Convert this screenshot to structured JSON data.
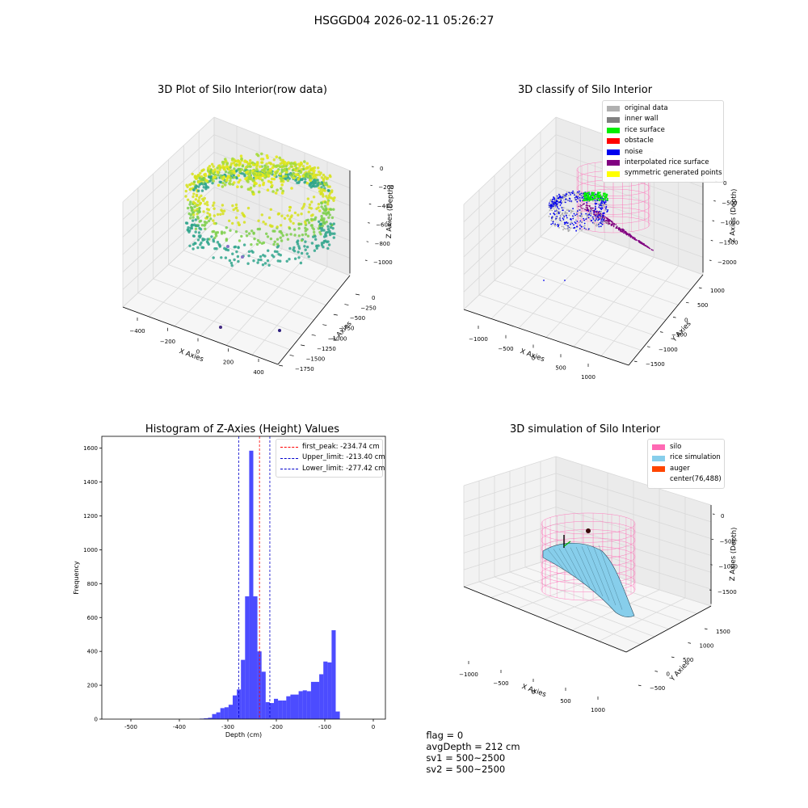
{
  "suptitle": "HSGGD04 2026-02-11 05:26:27",
  "panels": {
    "raw": {
      "title": "3D Plot of Silo Interior(row data)",
      "x_label": "X Axies",
      "y_label": "Y Axies",
      "z_label": "Z Axies (Depth)",
      "x_ticks": [
        "−400",
        "−200",
        "0",
        "200",
        "400"
      ],
      "y_ticks": [
        "0",
        "−250",
        "−500",
        "−750",
        "−1000",
        "−1250",
        "−1500",
        "−1750"
      ],
      "z_ticks": [
        "0",
        "−200",
        "−400",
        "−600",
        "−800",
        "−1000"
      ]
    },
    "classify": {
      "title": "3D classify of Silo Interior",
      "x_label": "X Axies",
      "y_label": "Y Axies",
      "z_label": "Z Axies (Depth)",
      "x_ticks": [
        "−1000",
        "−500",
        "0",
        "500",
        "1000"
      ],
      "y_ticks": [
        "1000",
        "500",
        "0",
        "−500",
        "−1000",
        "−1500"
      ],
      "z_ticks": [
        "0",
        "−500",
        "−1000",
        "−1500",
        "−2000"
      ],
      "legend": [
        {
          "label": "original data",
          "color": "#b0b0b0"
        },
        {
          "label": "inner wall",
          "color": "#808080"
        },
        {
          "label": "rice surface",
          "color": "#00ee00"
        },
        {
          "label": "obstacle",
          "color": "#ff0000"
        },
        {
          "label": "noise",
          "color": "#0000ee"
        },
        {
          "label": "interpolated rice surface",
          "color": "#800080"
        },
        {
          "label": "symmetric generated points",
          "color": "#ffff00"
        }
      ]
    },
    "simulation": {
      "title": "3D simulation of Silo Interior",
      "x_label": "X Axies",
      "y_label": "Y Axies",
      "z_label": "Z Axies (Depth)",
      "x_ticks": [
        "−1000",
        "−500",
        "0",
        "500",
        "1000"
      ],
      "y_ticks": [
        "1500",
        "1000",
        "500",
        "0",
        "−500"
      ],
      "z_ticks": [
        "0",
        "−500",
        "−1000",
        "−1500"
      ],
      "legend": [
        {
          "label": "silo",
          "color": "#ff69b4"
        },
        {
          "label": "rice simulation",
          "color": "#87ceeb"
        },
        {
          "label": "auger",
          "color": "#ff4500"
        },
        {
          "label": "center(76,488)",
          "color": ""
        }
      ]
    }
  },
  "chart_data": {
    "type": "bar",
    "title": "Histogram of Z-Axies (Height) Values",
    "xlabel": "Depth (cm)",
    "ylabel": "Frequency",
    "xlim": [
      -560,
      25
    ],
    "ylim": [
      0,
      1670
    ],
    "x_ticks": [
      -500,
      -400,
      -300,
      -200,
      -100,
      0
    ],
    "y_ticks": [
      0,
      200,
      400,
      600,
      800,
      1000,
      1200,
      1400,
      1600
    ],
    "bin_width": 8.5,
    "color": "#0000ff",
    "bins": [
      {
        "x": -358,
        "v": 3
      },
      {
        "x": -349.5,
        "v": 5
      },
      {
        "x": -341,
        "v": 8
      },
      {
        "x": -332.5,
        "v": 30
      },
      {
        "x": -324,
        "v": 40
      },
      {
        "x": -315.5,
        "v": 65
      },
      {
        "x": -307,
        "v": 70
      },
      {
        "x": -298.5,
        "v": 85
      },
      {
        "x": -290,
        "v": 140
      },
      {
        "x": -281.5,
        "v": 175
      },
      {
        "x": -273,
        "v": 350
      },
      {
        "x": -264.5,
        "v": 725
      },
      {
        "x": -256,
        "v": 1585
      },
      {
        "x": -247.5,
        "v": 725
      },
      {
        "x": -239,
        "v": 400
      },
      {
        "x": -230.5,
        "v": 280
      },
      {
        "x": -222,
        "v": 100
      },
      {
        "x": -213.5,
        "v": 95
      },
      {
        "x": -205,
        "v": 120
      },
      {
        "x": -196.5,
        "v": 110
      },
      {
        "x": -188,
        "v": 110
      },
      {
        "x": -179.5,
        "v": 135
      },
      {
        "x": -171,
        "v": 145
      },
      {
        "x": -162.5,
        "v": 145
      },
      {
        "x": -154,
        "v": 165
      },
      {
        "x": -145.5,
        "v": 170
      },
      {
        "x": -137,
        "v": 165
      },
      {
        "x": -128.5,
        "v": 220
      },
      {
        "x": -120,
        "v": 220
      },
      {
        "x": -111.5,
        "v": 265
      },
      {
        "x": -103,
        "v": 340
      },
      {
        "x": -94.5,
        "v": 335
      },
      {
        "x": -86,
        "v": 525
      },
      {
        "x": -77.5,
        "v": 45
      }
    ],
    "vlines": [
      {
        "label": "first_peak: -234.74 cm",
        "x": -234.74,
        "color": "#ff0000"
      },
      {
        "label": "Upper_limit: -213.40 cm",
        "x": -213.4,
        "color": "#0000cc"
      },
      {
        "label": "Lower_limit: -277.42 cm",
        "x": -277.42,
        "color": "#0000cc"
      }
    ]
  },
  "footer": {
    "flag": "flag = 0",
    "avg_depth": "avgDepth = 212 cm",
    "sv1": "sv1 = 500~2500",
    "sv2": "sv2 = 500~2500"
  }
}
